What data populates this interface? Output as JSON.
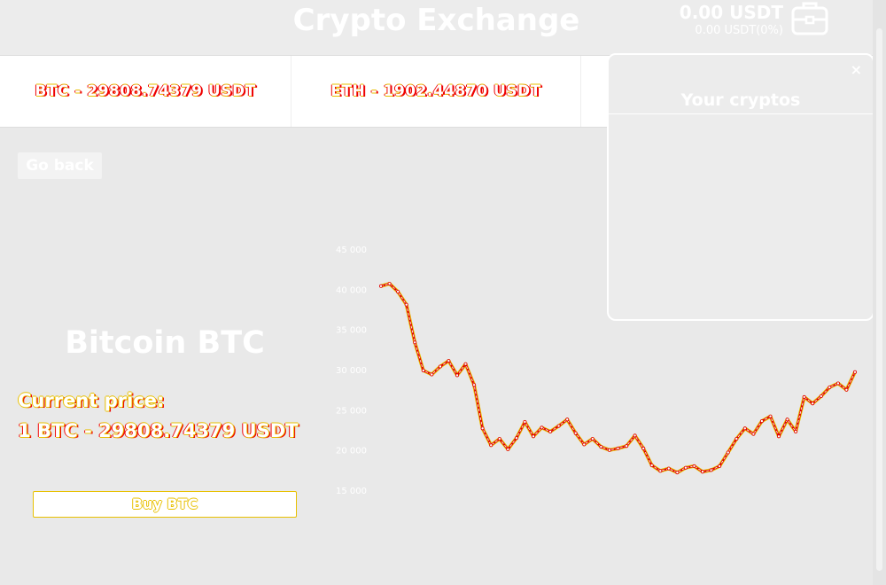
{
  "header": {
    "title": "Crypto Exchange",
    "balance": "0.00 USDT",
    "balance_change": "0.00 USDT(0%)",
    "wallet_icon": "wallet-icon"
  },
  "ticker": {
    "items": [
      {
        "label": "BTC - 29808.74379 USDT"
      },
      {
        "label": "ETH - 1902.44870 USDT"
      }
    ]
  },
  "nav": {
    "go_back": "Go back"
  },
  "coin": {
    "title": "Bitcoin BTC",
    "price_label": "Current price:",
    "price_value": "1 BTC - 29808.74379 USDT",
    "buy_label": "Buy BTC"
  },
  "portfolio_panel": {
    "title": "Your cryptos",
    "close_glyph": "×"
  },
  "colors": {
    "line_primary": "#e8c000",
    "line_secondary": "#e00000",
    "background": "#e9e9e9"
  },
  "chart_data": {
    "type": "line",
    "title": "",
    "xlabel": "",
    "ylabel": "",
    "ylim": [
      15000,
      45000
    ],
    "yticks": [
      "45 000",
      "40 000",
      "35 000",
      "30 000",
      "25 000",
      "20 000",
      "15 000"
    ],
    "series": [
      {
        "values": [
          40500,
          40800,
          39800,
          38200,
          33500,
          30000,
          29500,
          30500,
          31200,
          29400,
          30800,
          28200,
          22800,
          20700,
          21500,
          20200,
          21600,
          23600,
          21800,
          22900,
          22400,
          23100,
          23900,
          22200,
          20800,
          21500,
          20500,
          20100,
          20300,
          20600,
          21900,
          20300,
          18200,
          17500,
          17800,
          17300,
          17900,
          18100,
          17400,
          17600,
          18100,
          19800,
          21500,
          22800,
          22100,
          23700,
          24300,
          21800,
          23900,
          22400,
          26700,
          25900,
          26800,
          27900,
          28400,
          27600,
          29800
        ]
      }
    ]
  }
}
